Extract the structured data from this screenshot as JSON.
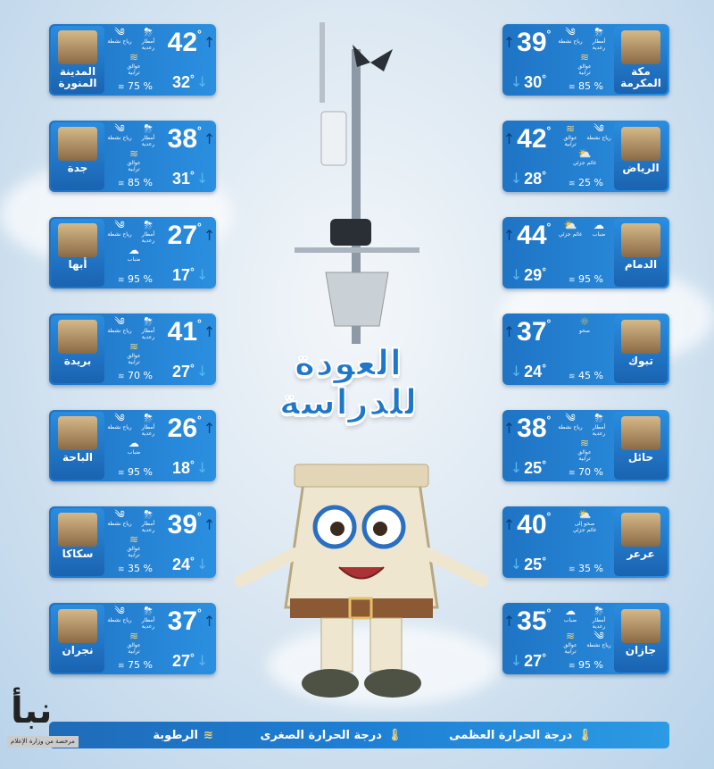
{
  "title": "العودة للدراسة",
  "labels": {
    "thunder": "أمطار رعدية",
    "wind": "رياح نشطة",
    "dust": "عوالق ترابية",
    "fog": "ضباب",
    "partly": "غائم جزئي",
    "sunny": "صحو",
    "sunny_partly": "صحو إلى غائم جزئي"
  },
  "icons": {
    "thunder": "⛈",
    "wind": "༄",
    "dust": "≋",
    "fog": "☁",
    "partly": "⛅",
    "sunny": "☼",
    "sunny_partly": "⛅"
  },
  "humidity_unit": "%",
  "left": [
    {
      "city": "المدينة المنورة",
      "max": "42",
      "min": "32",
      "humidity": "75",
      "conditions": [
        "thunder",
        "wind",
        "dust"
      ]
    },
    {
      "city": "جدة",
      "max": "38",
      "min": "31",
      "humidity": "85",
      "conditions": [
        "thunder",
        "wind",
        "dust"
      ]
    },
    {
      "city": "أبها",
      "max": "27",
      "min": "17",
      "humidity": "95",
      "conditions": [
        "thunder",
        "wind",
        "fog"
      ]
    },
    {
      "city": "بريدة",
      "max": "41",
      "min": "27",
      "humidity": "70",
      "conditions": [
        "thunder",
        "wind",
        "dust"
      ]
    },
    {
      "city": "الباحة",
      "max": "26",
      "min": "18",
      "humidity": "95",
      "conditions": [
        "thunder",
        "wind",
        "fog"
      ]
    },
    {
      "city": "سكاكا",
      "max": "39",
      "min": "24",
      "humidity": "35",
      "conditions": [
        "thunder",
        "wind",
        "dust"
      ]
    },
    {
      "city": "نجران",
      "max": "37",
      "min": "27",
      "humidity": "75",
      "conditions": [
        "thunder",
        "wind",
        "dust"
      ]
    }
  ],
  "right": [
    {
      "city": "مكة المكرمة",
      "max": "39",
      "min": "30",
      "humidity": "85",
      "conditions": [
        "thunder",
        "wind",
        "dust"
      ]
    },
    {
      "city": "الرياض",
      "max": "42",
      "min": "28",
      "humidity": "25",
      "conditions": [
        "wind",
        "dust",
        "partly"
      ]
    },
    {
      "city": "الدمام",
      "max": "44",
      "min": "29",
      "humidity": "95",
      "conditions": [
        "fog",
        "partly"
      ]
    },
    {
      "city": "تبوك",
      "max": "37",
      "min": "24",
      "humidity": "45",
      "conditions": [
        "sunny"
      ]
    },
    {
      "city": "حائل",
      "max": "38",
      "min": "25",
      "humidity": "70",
      "conditions": [
        "thunder",
        "wind",
        "dust"
      ]
    },
    {
      "city": "عرعر",
      "max": "40",
      "min": "25",
      "humidity": "35",
      "conditions": [
        "sunny_partly"
      ]
    },
    {
      "city": "جازان",
      "max": "35",
      "min": "27",
      "humidity": "95",
      "conditions": [
        "thunder",
        "fog",
        "wind",
        "dust"
      ]
    }
  ],
  "legend": {
    "max": "درجة الحرارة العظمى",
    "min": "درجة الحرارة الصغرى",
    "humidity": "الرطوبة"
  },
  "logo": {
    "name": "نبأ",
    "license": "مرخصة من وزارة الإعلام"
  },
  "colors": {
    "card": "#1f74c4",
    "title": "#1f77c9",
    "dust_icon": "#f2d27a"
  }
}
